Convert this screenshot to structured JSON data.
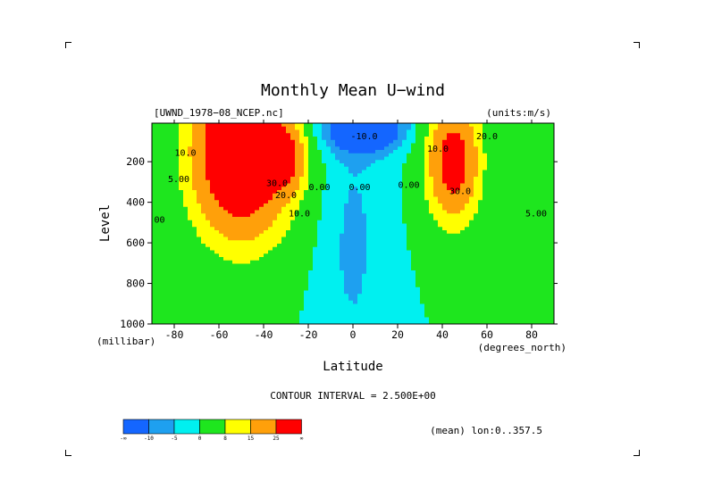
{
  "chart_data": {
    "type": "heatmap",
    "title": "Monthly Mean U−wind",
    "dataset": "[UWND_1978−08_NCEP.nc]",
    "units": "(units:m/s)",
    "xlabel": "Latitude",
    "x_units": "(degrees_north)",
    "ylabel": "Level",
    "y_units": "(millibar)",
    "xlim": [
      -90,
      90
    ],
    "ylim": [
      1000,
      10
    ],
    "x_ticks": [
      -80,
      -60,
      -40,
      -20,
      0,
      20,
      40,
      60,
      80
    ],
    "y_ticks": [
      200,
      400,
      600,
      800,
      1000
    ],
    "contour_interval_text": "CONTOUR INTERVAL = 2.500E+00",
    "contour_interval": 2.5,
    "footer_text": "(mean) lon:0..357.5",
    "contour_labels": [
      {
        "text": "10.0",
        "lat": -75,
        "lev": 170
      },
      {
        "text": "5.00",
        "lat": -78,
        "lev": 300
      },
      {
        "text": "0.00",
        "lat": -89,
        "lev": 500
      },
      {
        "text": "30.0",
        "lat": -34,
        "lev": 320
      },
      {
        "text": "20.0",
        "lat": -30,
        "lev": 380
      },
      {
        "text": "10.0",
        "lat": -24,
        "lev": 470
      },
      {
        "text": "0.00",
        "lat": -15,
        "lev": 340
      },
      {
        "text": "-10.0",
        "lat": 5,
        "lev": 90
      },
      {
        "text": "0.00",
        "lat": 3,
        "lev": 340
      },
      {
        "text": "0.00",
        "lat": 25,
        "lev": 330
      },
      {
        "text": "10.0",
        "lat": 38,
        "lev": 150
      },
      {
        "text": "20.0",
        "lat": 60,
        "lev": 90
      },
      {
        "text": "30.0",
        "lat": 48,
        "lev": 360
      },
      {
        "text": "5.00",
        "lat": 82,
        "lev": 470
      }
    ],
    "color_levels": [
      {
        "label": "-∞",
        "color": "#1466ff"
      },
      {
        "label": "-10",
        "color": "#1ea0f0"
      },
      {
        "label": "-5",
        "color": "#00f0f0"
      },
      {
        "label": "0",
        "color": "#1ee61e"
      },
      {
        "label": "8",
        "color": "#ffff00"
      },
      {
        "label": "15",
        "color": "#ffa00a"
      },
      {
        "label": "25",
        "color": "#ff0000"
      },
      {
        "label": "∞",
        "color": ""
      }
    ],
    "jets": [
      {
        "lat": -50,
        "lev": 150,
        "max": 45,
        "sx": 22,
        "sy": 420
      },
      {
        "lat": -30,
        "lev": 190,
        "max": 18,
        "sx": 8,
        "sy": 150
      },
      {
        "lat": 45,
        "lev": 200,
        "max": 32,
        "sx": 12,
        "sy": 300
      },
      {
        "lat": 85,
        "lev": 280,
        "max": 5,
        "sx": 8,
        "sy": 200
      }
    ],
    "easterlies": [
      {
        "lat": 5,
        "lev": 30,
        "min": -22,
        "sx": 18,
        "sy": 120
      },
      {
        "lat": 0,
        "lev": 600,
        "min": -6,
        "sx": 14,
        "sy": 700
      }
    ]
  }
}
